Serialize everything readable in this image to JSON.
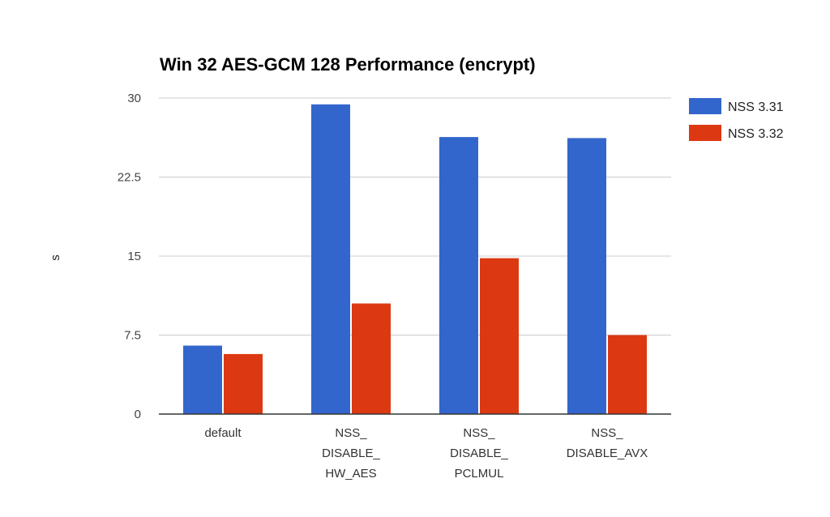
{
  "chart_data": {
    "type": "bar",
    "title": "Win 32 AES-GCM 128 Performance (encrypt)",
    "xlabel": "",
    "ylabel": "s",
    "ylim": [
      0,
      30
    ],
    "yticks": [
      "0",
      "7.5",
      "15",
      "22.5",
      "30"
    ],
    "ytick_values": [
      0,
      7.5,
      15,
      22.5,
      30
    ],
    "grid": true,
    "legend_position": "right",
    "categories": [
      [
        "default"
      ],
      [
        "NSS_",
        "DISABLE_",
        "HW_AES"
      ],
      [
        "NSS_",
        "DISABLE_",
        "PCLMUL"
      ],
      [
        "NSS_",
        "DISABLE_AVX"
      ]
    ],
    "series": [
      {
        "name": "NSS 3.31",
        "color": "#3366cc",
        "values": [
          6.5,
          29.4,
          26.3,
          26.2
        ]
      },
      {
        "name": "NSS 3.32",
        "color": "#dc3912",
        "values": [
          5.7,
          10.5,
          14.8,
          7.5
        ]
      }
    ]
  }
}
